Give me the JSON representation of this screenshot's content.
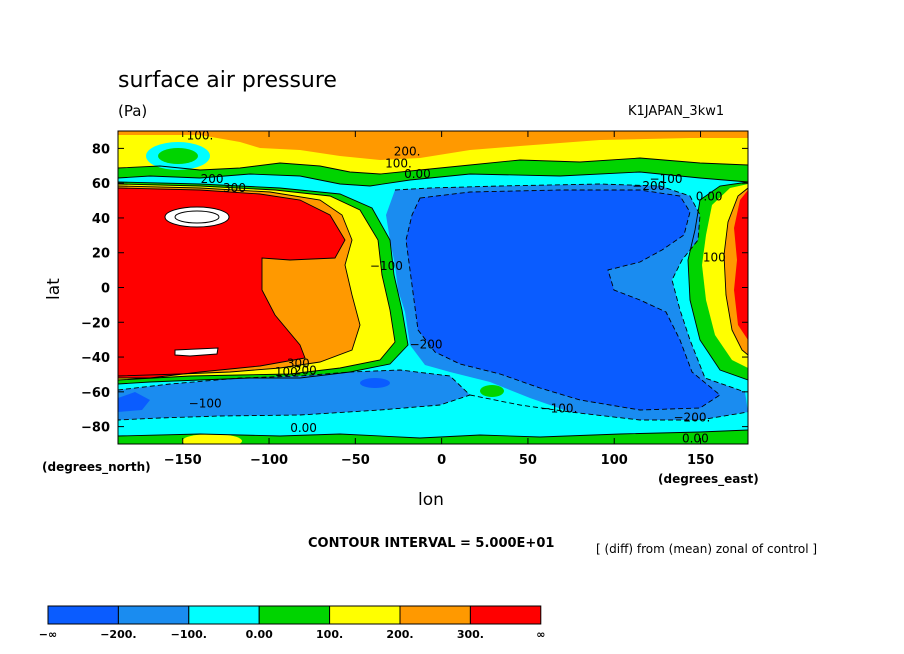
{
  "chart_data": {
    "type": "contour",
    "title": "surface air pressure",
    "units": "(Pa)",
    "run_label": "K1JAPAN_3kw1",
    "xlabel": "lon",
    "ylabel": "lat",
    "x_unit_label": "(degrees_east)",
    "y_unit_label": "(degrees_north)",
    "xlim": [
      -187.5,
      177.5
    ],
    "ylim": [
      -90,
      90
    ],
    "x_ticks": [
      -150,
      -100,
      -50,
      0,
      50,
      100,
      150
    ],
    "x_tick_labels": [
      "−150",
      "−100",
      "−50",
      "0",
      "50",
      "100",
      "150"
    ],
    "y_ticks": [
      80,
      60,
      40,
      20,
      0,
      -20,
      -40,
      -60,
      -80
    ],
    "y_tick_labels": [
      "80",
      "60",
      "40",
      "20",
      "0",
      "−20",
      "−40",
      "−60",
      "−80"
    ],
    "contour_interval_text": "CONTOUR INTERVAL = 5.000E+01",
    "note": "[ (diff) from (mean) zonal of control ]",
    "contour_labels": [
      {
        "text": "100.",
        "lon": -140,
        "lat": 85
      },
      {
        "text": "200.",
        "lon": -20,
        "lat": 76
      },
      {
        "text": "100.",
        "lon": -25,
        "lat": 69
      },
      {
        "text": "0.00",
        "lon": -14,
        "lat": 63
      },
      {
        "text": "200",
        "lon": -133,
        "lat": 60
      },
      {
        "text": "300",
        "lon": -120,
        "lat": 55
      },
      {
        "text": "−100",
        "lon": 130,
        "lat": 60
      },
      {
        "text": "−200",
        "lon": 120,
        "lat": 56
      },
      {
        "text": "0.00",
        "lon": 155,
        "lat": 50
      },
      {
        "text": "−100",
        "lon": -32,
        "lat": 10
      },
      {
        "text": "100",
        "lon": 158,
        "lat": 15
      },
      {
        "text": "−200",
        "lon": -9,
        "lat": -35
      },
      {
        "text": "300",
        "lon": -83,
        "lat": -46
      },
      {
        "text": "200",
        "lon": -79,
        "lat": -50
      },
      {
        "text": "100",
        "lon": -90,
        "lat": -51
      },
      {
        "text": "−100",
        "lon": -137,
        "lat": -69
      },
      {
        "text": "0.00",
        "lon": -80,
        "lat": -83
      },
      {
        "text": "−100.",
        "lon": 68,
        "lat": -72
      },
      {
        "text": "−200.",
        "lon": 145,
        "lat": -77
      },
      {
        "text": "0.00",
        "lon": 147,
        "lat": -89
      }
    ],
    "colorbar": {
      "colors": [
        "#0a5cff",
        "#1a8cf0",
        "#00ffff",
        "#00d400",
        "#ffff00",
        "#ff9900",
        "#ff0000"
      ],
      "labels": [
        "−∞",
        "−200.",
        "−100.",
        "0.00",
        "100.",
        "200.",
        "300.",
        "∞"
      ]
    }
  }
}
